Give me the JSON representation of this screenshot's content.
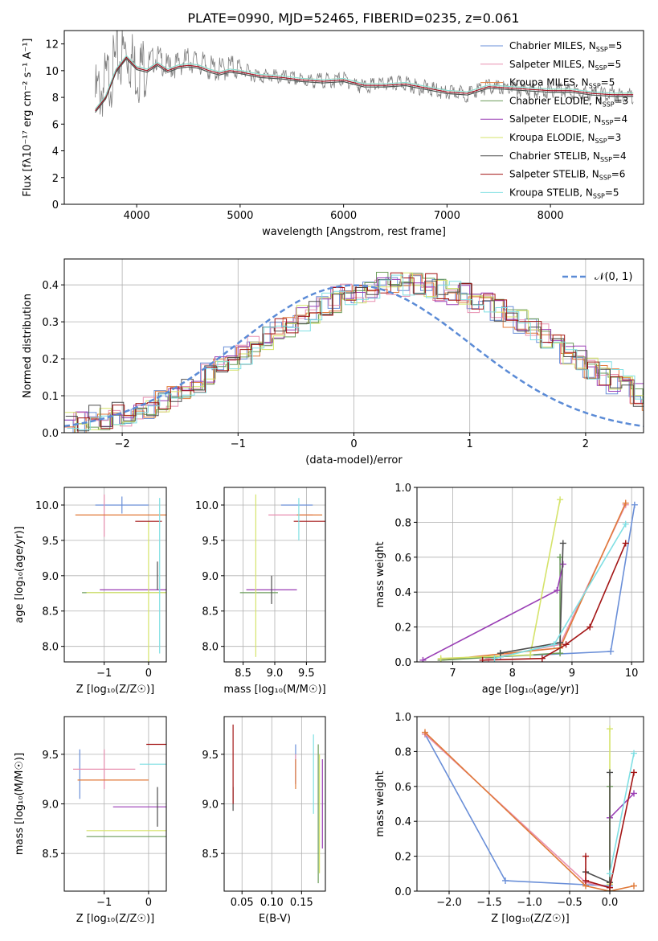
{
  "figure": {
    "title": "PLATE=0990, MJD=52465, FIBERID=0235, z=0.061"
  },
  "series": [
    {
      "name": "Chabrier MILES, N_{SSP}=5",
      "color": "#6a8fd8"
    },
    {
      "name": "Salpeter MILES, N_{SSP}=5",
      "color": "#e88fb0"
    },
    {
      "name": "Kroupa MILES, N_{SSP}=5",
      "color": "#e07a3a"
    },
    {
      "name": "Chabrier ELODIE, N_{SSP}=3",
      "color": "#6b9c5a"
    },
    {
      "name": "Salpeter ELODIE, N_{SSP}=4",
      "color": "#9a3fb5"
    },
    {
      "name": "Kroupa ELODIE, N_{SSP}=3",
      "color": "#d5e36a"
    },
    {
      "name": "Chabrier STELIB, N_{SSP}=4",
      "color": "#4d4d4d"
    },
    {
      "name": "Salpeter STELIB, N_{SSP}=6",
      "color": "#a31515"
    },
    {
      "name": "Kroupa STELIB, N_{SSP}=5",
      "color": "#7fdfe3"
    }
  ],
  "chart_data": [
    {
      "id": "spectrum",
      "type": "line",
      "xlabel": "wavelength [Angstrom, rest frame]",
      "ylabel": "Flux [f_λ10^{-17} erg cm^{-2} s^{-1} A^{-1}]",
      "xlim": [
        3300,
        8900
      ],
      "ylim": [
        0,
        13
      ],
      "xticks": [
        4000,
        5000,
        6000,
        7000,
        8000
      ],
      "yticks": [
        0,
        2,
        4,
        6,
        8,
        10,
        12
      ],
      "grid": false,
      "legend": "right",
      "data_color": "#808080",
      "data_x": [
        3600,
        3700,
        3800,
        3900,
        4000,
        4100,
        4200,
        4300,
        4400,
        4500,
        4600,
        4700,
        4800,
        4900,
        5000,
        5100,
        5200,
        5300,
        5400,
        5500,
        5600,
        5700,
        5800,
        5900,
        6000,
        6100,
        6200,
        6300,
        6400,
        6500,
        6600,
        6700,
        6800,
        6900,
        7000,
        7100,
        7200,
        7300,
        7400,
        7500,
        7600,
        7700,
        7800,
        7900,
        8000,
        8100,
        8200,
        8300,
        8400,
        8500,
        8600,
        8700,
        8800
      ],
      "data_y": [
        8.0,
        9.0,
        10.5,
        11.5,
        10.0,
        10.5,
        11.0,
        10.2,
        10.5,
        10.8,
        10.6,
        10.2,
        10.0,
        10.3,
        10.1,
        9.8,
        9.6,
        9.6,
        9.5,
        9.4,
        9.3,
        9.2,
        9.3,
        9.2,
        9.4,
        9.0,
        8.8,
        8.9,
        9.0,
        9.0,
        9.1,
        8.8,
        8.7,
        8.5,
        8.3,
        8.4,
        8.2,
        8.6,
        8.8,
        8.7,
        8.7,
        8.6,
        8.6,
        8.4,
        8.5,
        8.7,
        8.4,
        8.3,
        8.3,
        8.2,
        8.3,
        8.2,
        8.1
      ],
      "model_x": [
        3600,
        3700,
        3800,
        3900,
        4000,
        4100,
        4200,
        4300,
        4400,
        4500,
        4600,
        4700,
        4800,
        4900,
        5000,
        5200,
        5400,
        5600,
        5800,
        6000,
        6200,
        6400,
        6600,
        6800,
        7000,
        7200,
        7400,
        7600,
        7800,
        8000,
        8200,
        8400,
        8600,
        8800
      ],
      "model_y": [
        7.0,
        8.0,
        10.0,
        11.0,
        10.2,
        10.0,
        10.5,
        10.0,
        10.3,
        10.4,
        10.3,
        10.0,
        9.8,
        10.0,
        9.9,
        9.6,
        9.5,
        9.3,
        9.2,
        9.3,
        8.9,
        8.9,
        9.0,
        8.7,
        8.4,
        8.3,
        8.8,
        8.7,
        8.6,
        8.5,
        8.5,
        8.3,
        8.2,
        8.2
      ]
    },
    {
      "id": "residuals",
      "type": "histogram",
      "xlabel": "(data-model)/error",
      "ylabel": "Normed distribution",
      "xlim": [
        -2.5,
        2.5
      ],
      "ylim": [
        0,
        0.47
      ],
      "xticks": [
        -2,
        -1,
        0,
        1,
        2
      ],
      "yticks": [
        0.0,
        0.1,
        0.2,
        0.3,
        0.4
      ],
      "grid": true,
      "legend": "top-right",
      "bin_edges_start": -2.5,
      "bin_width": 0.1,
      "hist_values": [
        0.03,
        0.03,
        0.04,
        0.04,
        0.05,
        0.05,
        0.06,
        0.07,
        0.08,
        0.1,
        0.12,
        0.14,
        0.16,
        0.18,
        0.2,
        0.22,
        0.24,
        0.26,
        0.28,
        0.29,
        0.31,
        0.33,
        0.35,
        0.36,
        0.38,
        0.38,
        0.38,
        0.4,
        0.4,
        0.4,
        0.4,
        0.4,
        0.39,
        0.38,
        0.37,
        0.36,
        0.35,
        0.33,
        0.32,
        0.3,
        0.28,
        0.26,
        0.24,
        0.22,
        0.2,
        0.18,
        0.16,
        0.14,
        0.12,
        0.1,
        0.08,
        0.07,
        0.06,
        0.05,
        0.04,
        0.04,
        0.03,
        0.03
      ],
      "gaussian_label": "𝒩(0, 1)",
      "gaussian_color": "#5b8bd6"
    },
    {
      "id": "age_vs_Z",
      "type": "errorbar",
      "xlabel": "Z [log₁₀(Z/Z☉)]",
      "ylabel": "age  [log₁₀(age/yr)]",
      "xlim": [
        -1.9,
        0.4
      ],
      "ylim": [
        7.78,
        10.25
      ],
      "xticks": [
        -1,
        0
      ],
      "yticks": [
        8.0,
        8.5,
        9.0,
        9.5,
        10.0
      ],
      "grid": true,
      "points": [
        {
          "s": 0,
          "x": -0.6,
          "y": 10.0,
          "xe": 0.6,
          "ye": 0.12
        },
        {
          "s": 1,
          "x": -1.0,
          "y": 9.85,
          "xe": 0.0,
          "ye": 0.3
        },
        {
          "s": 2,
          "x": -0.55,
          "y": 9.86,
          "xe": 1.1,
          "ye": 0.0
        },
        {
          "s": 3,
          "x": 0.0,
          "y": 8.76,
          "xe": 1.5,
          "ye": 0.0
        },
        {
          "s": 4,
          "x": -0.2,
          "y": 8.8,
          "xe": 0.9,
          "ye": 0.0
        },
        {
          "s": 5,
          "x": 0.0,
          "y": 8.76,
          "xe": 1.4,
          "ye": 1.0
        },
        {
          "s": 6,
          "x": 0.2,
          "y": 9.0,
          "xe": 0.0,
          "ye": 0.2
        },
        {
          "s": 7,
          "x": 0.0,
          "y": 9.77,
          "xe": 0.3,
          "ye": 0.0
        },
        {
          "s": 8,
          "x": 0.25,
          "y": 9.0,
          "xe": 0.0,
          "ye": 1.1
        }
      ]
    },
    {
      "id": "age_vs_mass",
      "type": "errorbar",
      "xlabel": "mass [log₁₀(M/M☉)]",
      "ylabel": "",
      "xlim": [
        8.2,
        9.8
      ],
      "ylim": [
        7.78,
        10.25
      ],
      "xticks": [
        8.5,
        9.0,
        9.5
      ],
      "yticks": [
        8.0,
        8.5,
        9.0,
        9.5,
        10.0
      ],
      "grid": true,
      "points": [
        {
          "s": 0,
          "x": 9.35,
          "y": 10.0,
          "xe": 0.25,
          "ye": 0.0
        },
        {
          "s": 1,
          "x": 9.25,
          "y": 9.86,
          "xe": 0.35,
          "ye": 0.0
        },
        {
          "s": 2,
          "x": 9.55,
          "y": 9.86,
          "xe": 0.2,
          "ye": 0.0
        },
        {
          "s": 3,
          "x": 8.75,
          "y": 8.76,
          "xe": 0.3,
          "ye": 0.0
        },
        {
          "s": 4,
          "x": 8.95,
          "y": 8.8,
          "xe": 0.4,
          "ye": 0.0
        },
        {
          "s": 5,
          "x": 8.7,
          "y": 9.0,
          "xe": 0.0,
          "ye": 1.15
        },
        {
          "s": 6,
          "x": 8.95,
          "y": 8.8,
          "xe": 0.0,
          "ye": 0.2
        },
        {
          "s": 7,
          "x": 9.6,
          "y": 9.77,
          "xe": 0.3,
          "ye": 0.0
        },
        {
          "s": 8,
          "x": 9.38,
          "y": 9.8,
          "xe": 0.0,
          "ye": 0.3
        }
      ]
    },
    {
      "id": "massweight_vs_age",
      "type": "line",
      "xlabel": "age  [log₁₀(age/yr)]",
      "ylabel": "mass weight",
      "xlim": [
        6.4,
        10.2
      ],
      "ylim": [
        0,
        1.0
      ],
      "xticks": [
        7,
        8,
        9,
        10
      ],
      "yticks": [
        0.0,
        0.2,
        0.4,
        0.6,
        0.8,
        1.0
      ],
      "grid": true,
      "series": [
        {
          "s": 0,
          "x": [
            7.8,
            9.65,
            10.05
          ],
          "y": [
            0.03,
            0.06,
            0.9
          ]
        },
        {
          "s": 1,
          "x": [
            7.6,
            8.8,
            9.9
          ],
          "y": [
            0.02,
            0.1,
            0.9
          ]
        },
        {
          "s": 2,
          "x": [
            6.8,
            8.8,
            9.9
          ],
          "y": [
            0.01,
            0.08,
            0.91
          ]
        },
        {
          "s": 3,
          "x": [
            6.8,
            8.8,
            8.8
          ],
          "y": [
            0.01,
            0.05,
            0.6
          ]
        },
        {
          "s": 4,
          "x": [
            6.5,
            8.75,
            8.85
          ],
          "y": [
            0.01,
            0.41,
            0.56
          ]
        },
        {
          "s": 5,
          "x": [
            6.8,
            8.3,
            8.8
          ],
          "y": [
            0.02,
            0.04,
            0.93
          ]
        },
        {
          "s": 6,
          "x": [
            7.8,
            8.8,
            8.85
          ],
          "y": [
            0.05,
            0.11,
            0.68
          ]
        },
        {
          "s": 7,
          "x": [
            7.5,
            8.5,
            8.9,
            9.3,
            9.9
          ],
          "y": [
            0.01,
            0.02,
            0.1,
            0.2,
            0.68
          ]
        },
        {
          "s": 8,
          "x": [
            7.7,
            8.7,
            9.9
          ],
          "y": [
            0.02,
            0.1,
            0.79
          ]
        }
      ]
    },
    {
      "id": "mass_vs_Z",
      "type": "errorbar",
      "xlabel": "Z [log₁₀(Z/Z☉)]",
      "ylabel": "mass [log₁₀(M/M☉)]",
      "xlim": [
        -1.9,
        0.4
      ],
      "ylim": [
        8.12,
        9.88
      ],
      "xticks": [
        -1,
        0
      ],
      "yticks": [
        8.5,
        9.0,
        9.5
      ],
      "grid": true,
      "points": [
        {
          "s": 0,
          "x": -1.55,
          "y": 9.3,
          "xe": 0.0,
          "ye": 0.25
        },
        {
          "s": 1,
          "x": -1.0,
          "y": 9.35,
          "xe": 0.7,
          "ye": 0.2
        },
        {
          "s": 2,
          "x": -0.8,
          "y": 9.24,
          "xe": 0.8,
          "ye": 0.0
        },
        {
          "s": 3,
          "x": 0.0,
          "y": 8.67,
          "xe": 1.4,
          "ye": 0.0
        },
        {
          "s": 4,
          "x": -0.2,
          "y": 8.97,
          "xe": 0.6,
          "ye": 0.0
        },
        {
          "s": 5,
          "x": -0.3,
          "y": 8.73,
          "xe": 1.1,
          "ye": 0.0
        },
        {
          "s": 6,
          "x": 0.2,
          "y": 8.97,
          "xe": 0.0,
          "ye": 0.2
        },
        {
          "s": 7,
          "x": 0.2,
          "y": 9.6,
          "xe": 0.25,
          "ye": 0.0
        },
        {
          "s": 8,
          "x": 0.1,
          "y": 9.4,
          "xe": 0.3,
          "ye": 0.0
        }
      ]
    },
    {
      "id": "mass_vs_ebv",
      "type": "errorbar",
      "xlabel": "E(B-V)",
      "ylabel": "",
      "xlim": [
        0.02,
        0.19
      ],
      "ylim": [
        8.12,
        9.88
      ],
      "xticks": [
        0.05,
        0.1,
        0.15
      ],
      "yticks": [
        8.5,
        9.0,
        9.5
      ],
      "grid": true,
      "points": [
        {
          "s": 0,
          "x": 0.14,
          "y": 9.4,
          "xe": 0.0,
          "ye": 0.2
        },
        {
          "s": 1,
          "x": 0.14,
          "y": 9.35,
          "xe": 0.0,
          "ye": 0.15
        },
        {
          "s": 2,
          "x": 0.14,
          "y": 9.3,
          "xe": 0.0,
          "ye": 0.15
        },
        {
          "s": 3,
          "x": 0.178,
          "y": 8.9,
          "xe": 0.0,
          "ye": 0.7
        },
        {
          "s": 4,
          "x": 0.185,
          "y": 9.0,
          "xe": 0.0,
          "ye": 0.45
        },
        {
          "s": 5,
          "x": 0.18,
          "y": 8.9,
          "xe": 0.0,
          "ye": 0.6
        },
        {
          "s": 6,
          "x": 0.035,
          "y": 9.05,
          "xe": 0.0,
          "ye": 0.12
        },
        {
          "s": 7,
          "x": 0.035,
          "y": 9.4,
          "xe": 0.0,
          "ye": 0.4
        },
        {
          "s": 8,
          "x": 0.17,
          "y": 9.3,
          "xe": 0.0,
          "ye": 0.4
        }
      ]
    },
    {
      "id": "massweight_vs_Z",
      "type": "line",
      "xlabel": "Z [log₁₀(Z/Z☉)]",
      "ylabel": "mass weight",
      "xlim": [
        -2.4,
        0.42
      ],
      "ylim": [
        0,
        1.0
      ],
      "xticks": [
        -2.0,
        -1.5,
        -1.0,
        -0.5,
        0.0
      ],
      "yticks": [
        0.0,
        0.2,
        0.4,
        0.6,
        0.8,
        1.0
      ],
      "grid": true,
      "series": [
        {
          "s": 0,
          "x": [
            -2.3,
            -1.3,
            0.0
          ],
          "y": [
            0.9,
            0.06,
            0.03
          ]
        },
        {
          "s": 1,
          "x": [
            -2.3,
            -0.3,
            0.0
          ],
          "y": [
            0.9,
            0.05,
            0.02
          ]
        },
        {
          "s": 2,
          "x": [
            -2.3,
            -0.3,
            0.0,
            0.3
          ],
          "y": [
            0.91,
            0.03,
            0.0,
            0.03
          ]
        },
        {
          "s": 3,
          "x": [
            0.0,
            0.0,
            0.0
          ],
          "y": [
            0.0,
            0.05,
            0.6
          ]
        },
        {
          "s": 4,
          "x": [
            0.0,
            0.3
          ],
          "y": [
            0.42,
            0.56
          ]
        },
        {
          "s": 5,
          "x": [
            0.0,
            0.0
          ],
          "y": [
            0.04,
            0.93
          ]
        },
        {
          "s": 6,
          "x": [
            -0.3,
            0.0,
            0.0
          ],
          "y": [
            0.11,
            0.05,
            0.68
          ]
        },
        {
          "s": 7,
          "x": [
            -0.3,
            -0.3,
            0.0,
            0.3
          ],
          "y": [
            0.2,
            0.06,
            0.02,
            0.68
          ]
        },
        {
          "s": 8,
          "x": [
            0.0,
            0.3
          ],
          "y": [
            0.1,
            0.79
          ]
        }
      ]
    }
  ]
}
